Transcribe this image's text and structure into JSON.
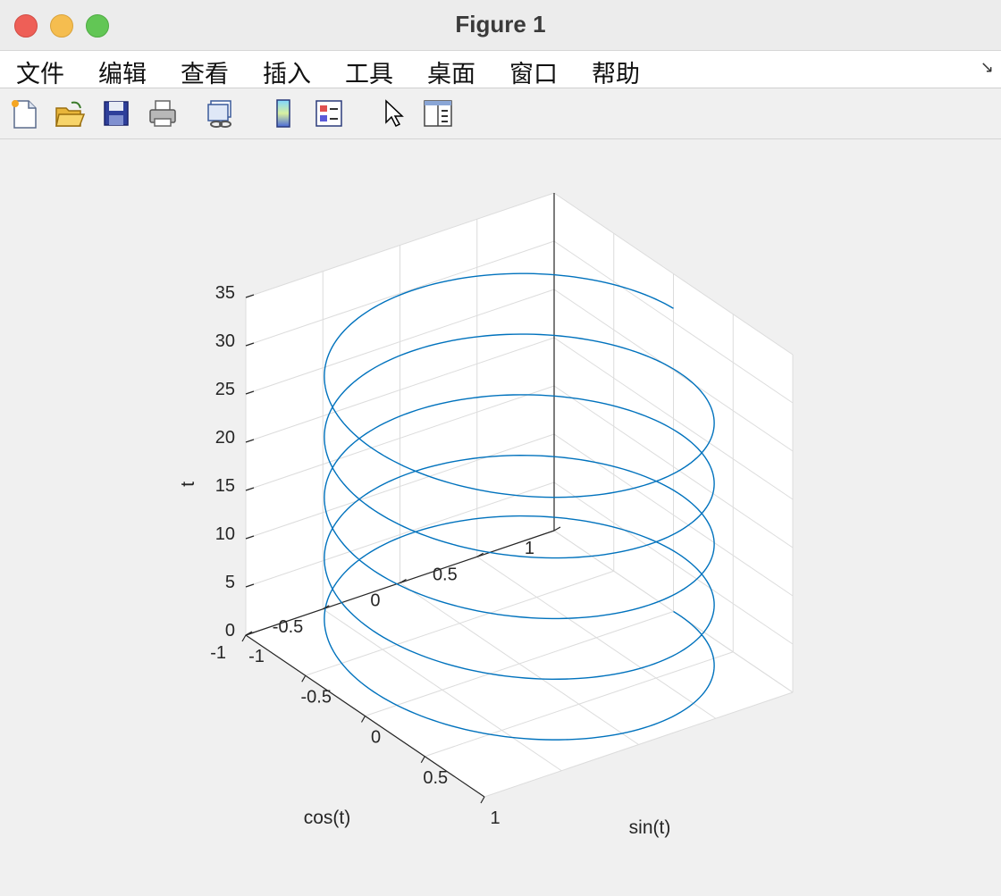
{
  "window": {
    "title": "Figure 1"
  },
  "menu": {
    "items": [
      "文件",
      "编辑",
      "查看",
      "插入",
      "工具",
      "桌面",
      "窗口",
      "帮助"
    ]
  },
  "toolbar": {
    "buttons": [
      "new-figure-icon",
      "open-file-icon",
      "save-icon",
      "print-icon",
      "link-plot-icon",
      "colorbar-icon",
      "legend-icon",
      "pointer-icon",
      "property-editor-icon"
    ]
  },
  "chart_data": {
    "type": "line",
    "projection": "3d",
    "series": [
      {
        "color": "#0072bd",
        "equation": "x = sin(t), y = cos(t), z = t",
        "t_range": [
          0,
          31.4159
        ]
      }
    ],
    "xlabel": "sin(t)",
    "ylabel": "cos(t)",
    "zlabel": "t",
    "xlim": [
      -1,
      1
    ],
    "ylim": [
      -1,
      1
    ],
    "zlim": [
      0,
      35
    ],
    "xticks": [
      "-1",
      "-0.5",
      "0",
      "0.5",
      "1"
    ],
    "yticks": [
      "-1",
      "-0.5",
      "0",
      "0.5",
      "1"
    ],
    "zticks": [
      "0",
      "5",
      "10",
      "15",
      "20",
      "25",
      "30",
      "35"
    ],
    "grid": true
  }
}
